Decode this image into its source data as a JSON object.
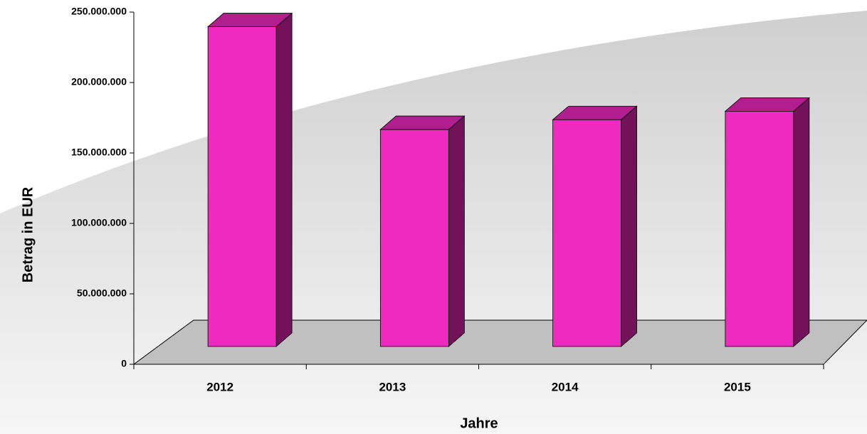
{
  "chart_data": {
    "type": "bar3d",
    "categories": [
      "2012",
      "2013",
      "2014",
      "2015"
    ],
    "values": [
      227000000,
      154000000,
      161000000,
      167000000
    ],
    "color": "#ee2ac0",
    "xlabel": "Jahre",
    "ylabel": "Betrag in EUR",
    "ylim": [
      0,
      250000000
    ],
    "yticks": [
      {
        "value": 0,
        "label": "0"
      },
      {
        "value": 50000000,
        "label": "50.000.000"
      },
      {
        "value": 100000000,
        "label": "100.000.000"
      },
      {
        "value": 150000000,
        "label": "150.000.000"
      },
      {
        "value": 200000000,
        "label": "200.000.000"
      },
      {
        "value": 250000000,
        "label": "250.000.000"
      }
    ]
  }
}
